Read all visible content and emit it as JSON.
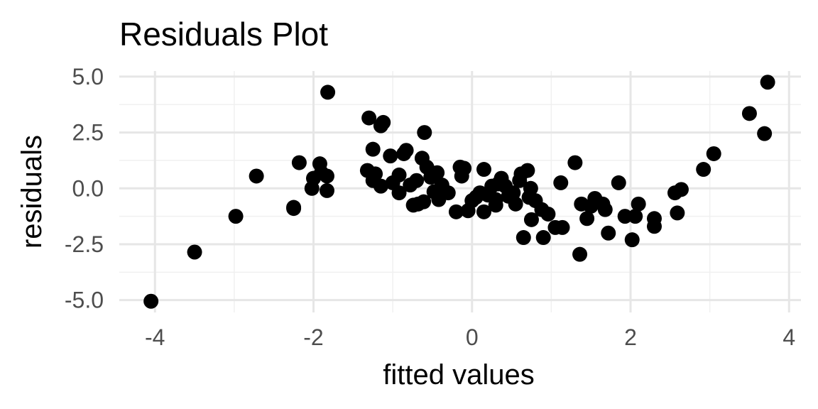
{
  "chart_data": {
    "type": "scatter",
    "title": "Residuals Plot",
    "xlabel": "fitted values",
    "ylabel": "residuals",
    "xlim": [
      -4.45,
      4.15
    ],
    "ylim": [
      -5.55,
      5.25
    ],
    "x_ticks": [
      -4,
      -2,
      0,
      2,
      4
    ],
    "x_tick_labels": [
      "-4",
      "-2",
      "0",
      "2",
      "4"
    ],
    "y_ticks": [
      -5.0,
      -2.5,
      0.0,
      2.5,
      5.0
    ],
    "y_tick_labels": [
      "-5.0",
      "-2.5",
      "0.0",
      "2.5",
      "5.0"
    ],
    "grid": true,
    "legend": "none",
    "point_color": "#000000",
    "series": [
      {
        "points": [
          {
            "x": -4.05,
            "y": -5.05
          },
          {
            "x": -3.5,
            "y": -2.85
          },
          {
            "x": -2.98,
            "y": -1.25
          },
          {
            "x": -2.72,
            "y": 0.55
          },
          {
            "x": -2.25,
            "y": -0.85
          },
          {
            "x": -2.25,
            "y": -0.9
          },
          {
            "x": -2.18,
            "y": 1.15
          },
          {
            "x": -2.02,
            "y": 0.0
          },
          {
            "x": -2.0,
            "y": 0.45
          },
          {
            "x": -1.92,
            "y": 1.1
          },
          {
            "x": -1.9,
            "y": 0.7
          },
          {
            "x": -1.83,
            "y": 0.55
          },
          {
            "x": -1.83,
            "y": -0.1
          },
          {
            "x": -1.82,
            "y": 4.3
          },
          {
            "x": -1.32,
            "y": 0.8
          },
          {
            "x": -1.3,
            "y": 3.15
          },
          {
            "x": -1.25,
            "y": 1.75
          },
          {
            "x": -1.25,
            "y": 0.35
          },
          {
            "x": -1.22,
            "y": 0.65
          },
          {
            "x": -1.15,
            "y": 0.1
          },
          {
            "x": -1.15,
            "y": 2.8
          },
          {
            "x": -1.12,
            "y": 2.95
          },
          {
            "x": -1.03,
            "y": 1.45
          },
          {
            "x": -1.0,
            "y": 0.25
          },
          {
            "x": -0.92,
            "y": -0.2
          },
          {
            "x": -0.92,
            "y": 0.6
          },
          {
            "x": -0.86,
            "y": 1.55
          },
          {
            "x": -0.83,
            "y": 1.7
          },
          {
            "x": -0.78,
            "y": 0.15
          },
          {
            "x": -0.74,
            "y": -0.75
          },
          {
            "x": -0.7,
            "y": 0.35
          },
          {
            "x": -0.68,
            "y": -0.7
          },
          {
            "x": -0.63,
            "y": 1.35
          },
          {
            "x": -0.61,
            "y": -0.6
          },
          {
            "x": -0.6,
            "y": 2.5
          },
          {
            "x": -0.57,
            "y": 0.95
          },
          {
            "x": -0.52,
            "y": 0.5
          },
          {
            "x": -0.48,
            "y": -0.15
          },
          {
            "x": -0.44,
            "y": 0.7
          },
          {
            "x": -0.42,
            "y": -0.5
          },
          {
            "x": -0.38,
            "y": 0.15
          },
          {
            "x": -0.3,
            "y": -0.2
          },
          {
            "x": -0.2,
            "y": -1.05
          },
          {
            "x": -0.15,
            "y": 0.95
          },
          {
            "x": -0.13,
            "y": 0.55
          },
          {
            "x": -0.1,
            "y": 0.9
          },
          {
            "x": -0.05,
            "y": -1.0
          },
          {
            "x": 0.0,
            "y": -0.55
          },
          {
            "x": 0.05,
            "y": -0.4
          },
          {
            "x": 0.1,
            "y": -0.2
          },
          {
            "x": 0.15,
            "y": 0.85
          },
          {
            "x": 0.15,
            "y": -1.05
          },
          {
            "x": 0.2,
            "y": -0.3
          },
          {
            "x": 0.25,
            "y": 0.1
          },
          {
            "x": 0.3,
            "y": -0.5
          },
          {
            "x": 0.3,
            "y": -0.75
          },
          {
            "x": 0.33,
            "y": 0.2
          },
          {
            "x": 0.37,
            "y": 0.45
          },
          {
            "x": 0.42,
            "y": 0.1
          },
          {
            "x": 0.46,
            "y": -0.35
          },
          {
            "x": 0.52,
            "y": -0.2
          },
          {
            "x": 0.55,
            "y": -0.7
          },
          {
            "x": 0.6,
            "y": 0.35
          },
          {
            "x": 0.62,
            "y": 0.65
          },
          {
            "x": 0.65,
            "y": -2.2
          },
          {
            "x": 0.7,
            "y": 0.8
          },
          {
            "x": 0.72,
            "y": -0.4
          },
          {
            "x": 0.74,
            "y": 0.0
          },
          {
            "x": 0.75,
            "y": -1.4
          },
          {
            "x": 0.8,
            "y": -0.55
          },
          {
            "x": 0.88,
            "y": -0.95
          },
          {
            "x": 0.9,
            "y": -2.2
          },
          {
            "x": 0.96,
            "y": -1.15
          },
          {
            "x": 1.05,
            "y": -1.75
          },
          {
            "x": 1.12,
            "y": 0.25
          },
          {
            "x": 1.14,
            "y": -1.75
          },
          {
            "x": 1.3,
            "y": 1.15
          },
          {
            "x": 1.36,
            "y": -2.95
          },
          {
            "x": 1.38,
            "y": -0.7
          },
          {
            "x": 1.45,
            "y": -1.35
          },
          {
            "x": 1.5,
            "y": -0.8
          },
          {
            "x": 1.55,
            "y": -0.45
          },
          {
            "x": 1.65,
            "y": -0.7
          },
          {
            "x": 1.68,
            "y": -0.95
          },
          {
            "x": 1.72,
            "y": -2.0
          },
          {
            "x": 1.85,
            "y": 0.25
          },
          {
            "x": 1.93,
            "y": -1.25
          },
          {
            "x": 2.02,
            "y": -2.3
          },
          {
            "x": 2.06,
            "y": -1.25
          },
          {
            "x": 2.1,
            "y": -0.7
          },
          {
            "x": 2.3,
            "y": -1.7
          },
          {
            "x": 2.3,
            "y": -1.35
          },
          {
            "x": 2.56,
            "y": -0.2
          },
          {
            "x": 2.59,
            "y": -1.1
          },
          {
            "x": 2.64,
            "y": -0.05
          },
          {
            "x": 2.92,
            "y": 0.85
          },
          {
            "x": 3.05,
            "y": 1.55
          },
          {
            "x": 3.5,
            "y": 3.35
          },
          {
            "x": 3.69,
            "y": 2.45
          },
          {
            "x": 3.73,
            "y": 4.75
          }
        ]
      }
    ]
  }
}
